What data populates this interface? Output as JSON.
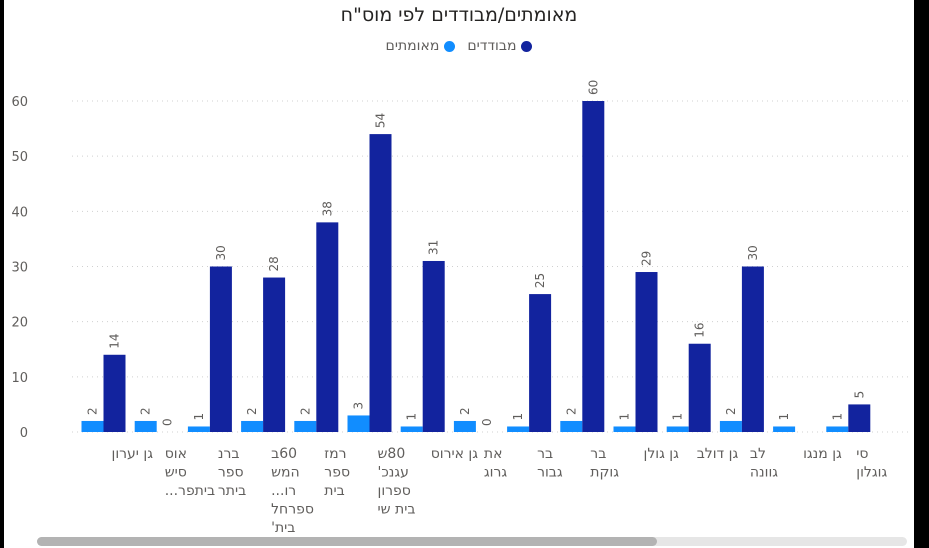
{
  "chart_data": {
    "type": "bar",
    "title": "מאומתים/מבודדים לפי מוס\"ח",
    "ylim": [
      0,
      60
    ],
    "yticks": [
      0,
      10,
      20,
      30,
      40,
      50,
      60
    ],
    "grid": true,
    "legend_position": "top-center",
    "categories": [
      [
        "גן יערון"
      ],
      [
        "אוס",
        "סיש",
        "ביתפר..."
      ],
      [
        "ברנ",
        "ספר",
        "ביתר"
      ],
      [
        "60ב",
        "המש",
        "רו...",
        "ספרחל",
        "בית'"
      ],
      [
        "רמז",
        "ספר",
        "בית"
      ],
      [
        "80ש",
        "עגנכ'",
        "ספרון",
        "בית שי"
      ],
      [
        "גן אירוס"
      ],
      [
        "את",
        "גרוג"
      ],
      [
        "בר",
        "גבור"
      ],
      [
        "בר",
        "גוקת"
      ],
      [
        "גן גולן"
      ],
      [
        "גן דולב"
      ],
      [
        "לב",
        "גוונה"
      ],
      [
        "גן מנגו"
      ],
      [
        "סי",
        "גוגלון"
      ]
    ],
    "series": [
      {
        "name": "מאומתים",
        "color": "#118DFF",
        "values": [
          2,
          2,
          1,
          2,
          2,
          3,
          1,
          2,
          1,
          2,
          1,
          1,
          2,
          1,
          1
        ]
      },
      {
        "name": "מבודדים",
        "color": "#12239E",
        "values": [
          14,
          0,
          30,
          28,
          38,
          54,
          31,
          0,
          25,
          60,
          29,
          16,
          30,
          null,
          5
        ]
      }
    ]
  }
}
